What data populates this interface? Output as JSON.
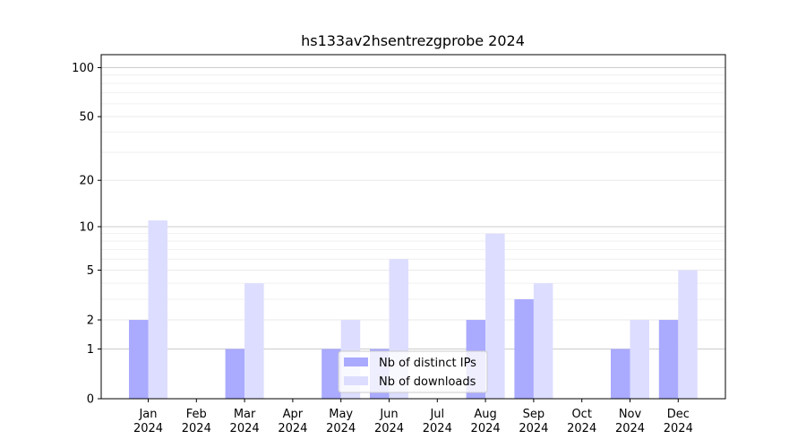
{
  "chart_data": {
    "type": "bar",
    "title": "hs133av2hsentrezgprobe 2024",
    "categories": [
      "Jan",
      "Feb",
      "Mar",
      "Apr",
      "May",
      "Jun",
      "Jul",
      "Aug",
      "Sep",
      "Oct",
      "Nov",
      "Dec"
    ],
    "category_sublabel": "2024",
    "yscale": "symlog",
    "ylim": [
      0,
      120
    ],
    "yticks": [
      0,
      1,
      2,
      5,
      10,
      20,
      50,
      100
    ],
    "series": [
      {
        "name": "Nb of distinct IPs",
        "color": "#aaaaff",
        "values": [
          2,
          0,
          1,
          0,
          1,
          1,
          0,
          2,
          3,
          0,
          1,
          2
        ]
      },
      {
        "name": "Nb of downloads",
        "color": "#ddddff",
        "values": [
          11,
          0,
          4,
          0,
          2,
          6,
          0,
          9,
          4,
          0,
          2,
          5
        ]
      }
    ],
    "legend_position": "bottom-center",
    "grid": "horizontal"
  }
}
